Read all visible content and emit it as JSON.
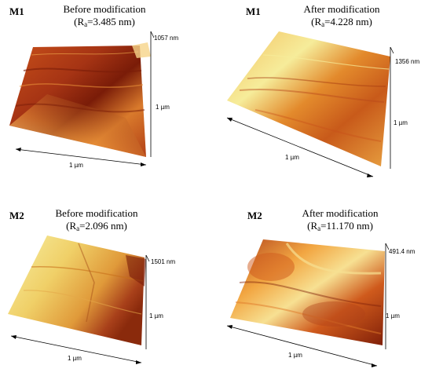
{
  "panels": [
    {
      "sample": "M1",
      "state": "Before modification",
      "ra_symbol": "R",
      "ra_subscript": "a",
      "ra_value": "=3.485 nm)",
      "z_label": "1057 nm",
      "y_label": "1 µm",
      "x_label": "1 µm",
      "palette": {
        "dark": "#7a1c08",
        "mid": "#c8501a",
        "light": "#f3a040",
        "pale": "#f6d58a"
      }
    },
    {
      "sample": "M1",
      "state": "After modification",
      "ra_symbol": "R",
      "ra_subscript": "a",
      "ra_value": "=4.228 nm)",
      "z_label": "1356 nm",
      "y_label": "1 µm",
      "x_label": "1 µm",
      "palette": {
        "dark": "#a63a10",
        "mid": "#e38a2c",
        "light": "#f1c15a",
        "pale": "#f6ec9a"
      }
    },
    {
      "sample": "M2",
      "state": "Before modification",
      "ra_symbol": "R",
      "ra_subscript": "a",
      "ra_value": "=2.096 nm)",
      "z_label": "1501 nm",
      "y_label": "1 µm",
      "x_label": "1 µm",
      "palette": {
        "dark": "#8a2a0c",
        "mid": "#e09a3a",
        "light": "#f0d068",
        "pale": "#f7efa4"
      }
    },
    {
      "sample": "M2",
      "state": "After modification",
      "ra_symbol": "R",
      "ra_subscript": "a",
      "ra_value": "=11.170 nm)",
      "z_label": "491.4 nm",
      "y_label": "1 µm",
      "x_label": "1 µm",
      "palette": {
        "dark": "#7e1e08",
        "mid": "#cf5a1c",
        "light": "#f2a642",
        "pale": "#f7e092"
      }
    }
  ]
}
